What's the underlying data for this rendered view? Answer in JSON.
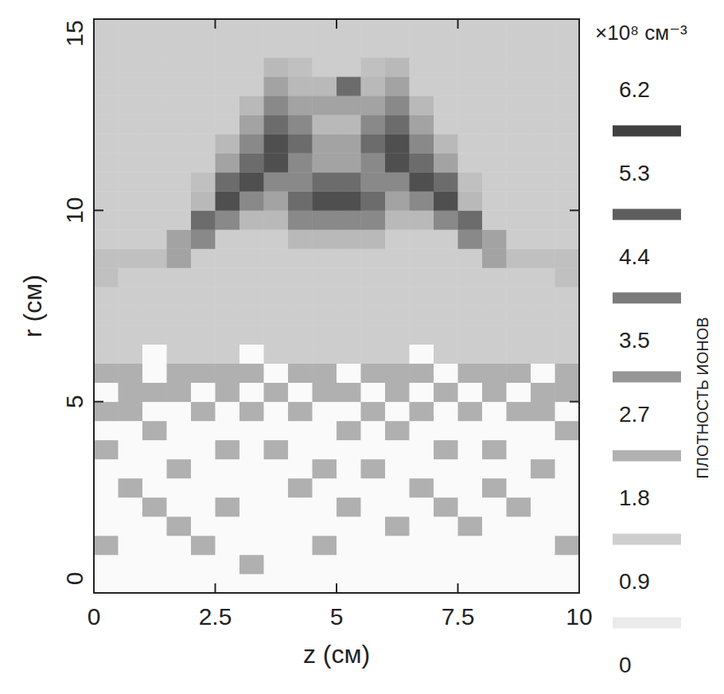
{
  "chart_data": {
    "type": "heatmap",
    "x_label": "z (см)",
    "y_label": "r (см)",
    "xlim": [
      0,
      10
    ],
    "xticks": [
      0,
      2.5,
      5,
      7.5,
      10
    ],
    "ylim": [
      0,
      15
    ],
    "yticks": [
      0,
      5,
      10,
      15
    ],
    "xbins": [
      0,
      0.5,
      1,
      1.5,
      2,
      2.5,
      3,
      3.5,
      4,
      4.5,
      5,
      5.5,
      6,
      6.5,
      7,
      7.5,
      8,
      8.5,
      9,
      9.5,
      10
    ],
    "ybins": [
      0,
      0.5,
      1,
      1.5,
      2,
      2.5,
      3,
      3.5,
      4,
      4.5,
      5,
      5.5,
      6,
      6.5,
      7,
      7.5,
      8,
      8.5,
      9,
      9.5,
      10,
      10.5,
      11,
      11.5,
      12,
      12.5,
      13,
      13.5,
      14,
      14.5,
      15
    ],
    "cells": [
      [
        0,
        0,
        0,
        0,
        0,
        0,
        0,
        0,
        0,
        0,
        0,
        0,
        0,
        0,
        0,
        0,
        0,
        0,
        0,
        0
      ],
      [
        0,
        0,
        0,
        0,
        0,
        0,
        2.3,
        0,
        0,
        0,
        0,
        0,
        0,
        0,
        0,
        0,
        0,
        0,
        0,
        0
      ],
      [
        2.3,
        0,
        0,
        0,
        2.3,
        0,
        0,
        0,
        0,
        2.3,
        0,
        0,
        0,
        0,
        0,
        0,
        0,
        0,
        0,
        2.3
      ],
      [
        0,
        0,
        0,
        2.3,
        0,
        0,
        0,
        0,
        0,
        0,
        0,
        0,
        2.3,
        0,
        0,
        2.3,
        0,
        0,
        0,
        0
      ],
      [
        0,
        0,
        2.3,
        0,
        0,
        2.3,
        0,
        0,
        0,
        0,
        2.3,
        0,
        0,
        0,
        2.3,
        0,
        0,
        2.3,
        0,
        0
      ],
      [
        0,
        2.3,
        0,
        0,
        0,
        0,
        0,
        0,
        2.3,
        0,
        0,
        0,
        0,
        2.3,
        0,
        0,
        2.3,
        0,
        0,
        0
      ],
      [
        0,
        0,
        0,
        2.3,
        0,
        0,
        0,
        0,
        0,
        2.3,
        0,
        2.3,
        0,
        0,
        0,
        0,
        0,
        0,
        2.3,
        0
      ],
      [
        2.3,
        0,
        0,
        0,
        0,
        2.3,
        0,
        2.3,
        0,
        0,
        0,
        0,
        0,
        0,
        2.3,
        0,
        2.3,
        0,
        0,
        0
      ],
      [
        0,
        0,
        2.3,
        0,
        0,
        0,
        0,
        0,
        0,
        0,
        2.3,
        0,
        2.3,
        0,
        0,
        0,
        0,
        0,
        0,
        2.3
      ],
      [
        2.3,
        2.3,
        0,
        0,
        2.3,
        0,
        2.3,
        0,
        2.3,
        0,
        0,
        2.3,
        0,
        2.3,
        0,
        2.3,
        0,
        2.3,
        2.3,
        0
      ],
      [
        0,
        2.3,
        2.3,
        2.3,
        0,
        2.3,
        0,
        2.3,
        0,
        2.3,
        2.3,
        0,
        2.3,
        0,
        2.3,
        0,
        2.3,
        0,
        2.3,
        2.3
      ],
      [
        2.3,
        2.3,
        0,
        2.3,
        2.3,
        2.3,
        2.3,
        0,
        2.3,
        2.3,
        0,
        2.3,
        2.3,
        2.3,
        0,
        2.3,
        2.3,
        2.3,
        0,
        2.3
      ],
      [
        1.4,
        1.4,
        0,
        1.4,
        1.4,
        1.4,
        0,
        1.4,
        1.4,
        1.4,
        1.4,
        1.4,
        1.4,
        0,
        1.4,
        1.4,
        1.4,
        1.4,
        1.4,
        1.4
      ],
      [
        1.4,
        1.4,
        1.4,
        1.4,
        1.4,
        1.4,
        1.4,
        1.4,
        1.4,
        1.4,
        1.4,
        1.4,
        1.4,
        1.4,
        1.4,
        1.4,
        1.4,
        1.4,
        1.4,
        1.4
      ],
      [
        1.4,
        1.4,
        1.4,
        1.4,
        1.4,
        1.4,
        1.4,
        1.4,
        1.4,
        1.4,
        1.4,
        1.4,
        1.4,
        1.4,
        1.4,
        1.4,
        1.4,
        1.4,
        1.4,
        1.4
      ],
      [
        1.4,
        1.4,
        1.4,
        1.4,
        1.4,
        1.4,
        1.4,
        1.4,
        1.4,
        1.4,
        1.4,
        1.4,
        1.4,
        1.4,
        1.4,
        1.4,
        1.4,
        1.4,
        1.4,
        1.4
      ],
      [
        1.8,
        1.4,
        1.4,
        1.4,
        1.4,
        1.4,
        1.4,
        1.4,
        1.4,
        1.4,
        1.4,
        1.4,
        1.4,
        1.4,
        1.4,
        1.4,
        1.4,
        1.4,
        1.4,
        1.8
      ],
      [
        1.8,
        1.8,
        1.8,
        2.7,
        1.4,
        1.4,
        1.4,
        1.4,
        1.4,
        1.4,
        1.4,
        1.4,
        1.4,
        1.4,
        1.4,
        1.4,
        2.7,
        1.8,
        1.8,
        1.8
      ],
      [
        1.4,
        1.4,
        1.4,
        2.7,
        3.5,
        1.4,
        1.4,
        1.4,
        2.0,
        2.0,
        2.0,
        2.0,
        1.4,
        1.4,
        1.4,
        3.5,
        2.7,
        1.4,
        1.4,
        1.4
      ],
      [
        1.4,
        1.4,
        1.4,
        1.4,
        4.4,
        3.5,
        2.0,
        2.0,
        3.5,
        3.5,
        3.5,
        3.5,
        2.0,
        2.0,
        3.5,
        4.4,
        1.4,
        1.4,
        1.4,
        1.4
      ],
      [
        1.4,
        1.4,
        1.4,
        1.4,
        2.0,
        5.3,
        3.5,
        2.7,
        4.4,
        5.3,
        5.3,
        4.4,
        2.7,
        3.5,
        5.3,
        2.0,
        1.4,
        1.4,
        1.4,
        1.4
      ],
      [
        1.4,
        1.4,
        1.4,
        1.4,
        1.8,
        4.4,
        5.3,
        3.5,
        3.5,
        4.4,
        4.4,
        3.5,
        3.5,
        5.3,
        4.4,
        1.8,
        1.4,
        1.4,
        1.4,
        1.4
      ],
      [
        1.4,
        1.4,
        1.4,
        1.4,
        1.4,
        2.7,
        4.4,
        5.3,
        3.5,
        2.7,
        2.7,
        3.5,
        5.3,
        4.4,
        2.7,
        1.4,
        1.4,
        1.4,
        1.4,
        1.4
      ],
      [
        1.4,
        1.4,
        1.4,
        1.4,
        1.4,
        2.0,
        3.5,
        5.3,
        4.4,
        2.7,
        2.7,
        4.4,
        5.3,
        3.5,
        2.0,
        1.4,
        1.4,
        1.4,
        1.4,
        1.4
      ],
      [
        1.4,
        1.4,
        1.4,
        1.4,
        1.4,
        1.4,
        2.7,
        4.4,
        3.5,
        2.0,
        2.0,
        3.5,
        4.4,
        2.7,
        1.4,
        1.4,
        1.4,
        1.4,
        1.4,
        1.4
      ],
      [
        1.4,
        1.4,
        1.4,
        1.4,
        1.4,
        1.4,
        2.0,
        3.5,
        2.7,
        2.7,
        2.7,
        2.7,
        3.5,
        2.0,
        1.4,
        1.4,
        1.4,
        1.4,
        1.4,
        1.4
      ],
      [
        1.4,
        1.4,
        1.4,
        1.4,
        1.4,
        1.4,
        1.4,
        2.7,
        2.0,
        2.0,
        4.4,
        2.0,
        2.7,
        1.4,
        1.4,
        1.4,
        1.4,
        1.4,
        1.4,
        1.4
      ],
      [
        1.4,
        1.4,
        1.4,
        1.4,
        1.4,
        1.4,
        1.4,
        2.0,
        1.8,
        1.4,
        1.4,
        1.8,
        2.0,
        1.4,
        1.4,
        1.4,
        1.4,
        1.4,
        1.4,
        1.4
      ],
      [
        1.4,
        1.4,
        1.4,
        1.4,
        1.4,
        1.4,
        1.4,
        1.4,
        1.4,
        1.4,
        1.4,
        1.4,
        1.4,
        1.4,
        1.4,
        1.4,
        1.4,
        1.4,
        1.4,
        1.4
      ],
      [
        1.4,
        1.4,
        1.4,
        1.4,
        1.4,
        1.4,
        1.4,
        1.4,
        1.4,
        1.4,
        1.4,
        1.4,
        1.4,
        1.4,
        1.4,
        1.4,
        1.4,
        1.4,
        1.4,
        1.4
      ]
    ],
    "colorbar": {
      "title": "ПЛОТНОСТЬ ИОНОВ",
      "unit": "×10⁸ см⁻³",
      "range": [
        0,
        6.2
      ],
      "ticks": [
        0,
        0.9,
        1.8,
        2.7,
        3.5,
        4.4,
        5.3,
        6.2
      ]
    }
  }
}
